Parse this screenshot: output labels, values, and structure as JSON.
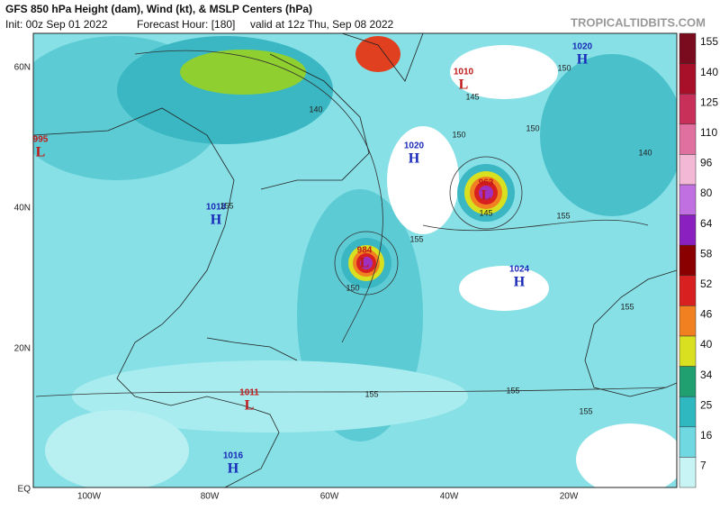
{
  "header": {
    "title": "GFS 850 hPa Height (dam), Wind (kt), & MSLP Centers (hPa)",
    "site": "TROPICALTIDBITS.COM",
    "init": "Init: 00z Sep 01 2022",
    "forecast_hour": "Forecast Hour: [180]",
    "valid": "valid at 12z Thu, Sep 08 2022"
  },
  "axes": {
    "lat_labels": [
      "60N",
      "40N",
      "20N",
      "EQ"
    ],
    "lon_labels": [
      "100W",
      "80W",
      "60W",
      "40W",
      "20W"
    ]
  },
  "colorbar": {
    "labels": [
      "155",
      "140",
      "125",
      "110",
      "96",
      "80",
      "64",
      "58",
      "52",
      "46",
      "40",
      "34",
      "25",
      "16",
      "7"
    ],
    "colors": [
      "#7a0a1e",
      "#a8102a",
      "#c8305a",
      "#e070a0",
      "#f2b8d6",
      "#c070e0",
      "#8a20c0",
      "#8a0000",
      "#d82020",
      "#f08020",
      "#d8e020",
      "#20a070",
      "#30b8c0",
      "#70d8e0",
      "#c8f4f6"
    ]
  },
  "centers": [
    {
      "kind": "L",
      "pressure": "995"
    },
    {
      "kind": "H",
      "pressure": "1018"
    },
    {
      "kind": "L",
      "pressure": "1010"
    },
    {
      "kind": "H",
      "pressure": "1020"
    },
    {
      "kind": "H",
      "pressure": "1020"
    },
    {
      "kind": "L",
      "pressure": "963"
    },
    {
      "kind": "L",
      "pressure": "984"
    },
    {
      "kind": "H",
      "pressure": "1024"
    },
    {
      "kind": "L",
      "pressure": "1011"
    },
    {
      "kind": "H",
      "pressure": "1016"
    }
  ],
  "contour_labels": [
    "150",
    "155",
    "155",
    "150",
    "150",
    "150",
    "155",
    "155",
    "145",
    "140",
    "145",
    "155",
    "155",
    "155",
    "140"
  ]
}
